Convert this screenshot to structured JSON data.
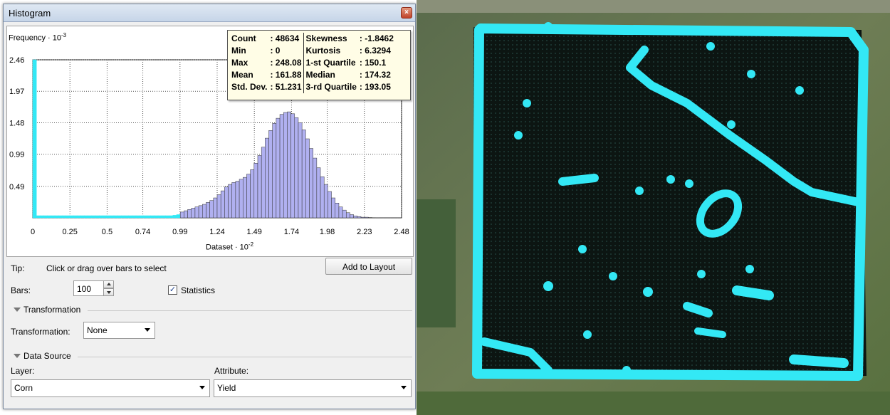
{
  "window": {
    "title": "Histogram",
    "close_icon": "close-icon"
  },
  "stats": {
    "count_label": "Count",
    "count_value": ": 48634",
    "min_label": "Min",
    "min_value": ": 0",
    "max_label": "Max",
    "max_value": ": 248.08",
    "mean_label": "Mean",
    "mean_value": ": 161.88",
    "std_label": "Std. Dev.",
    "std_value": ": 51.231",
    "skew_label": "Skewness",
    "skew_value": ": -1.8462",
    "kurt_label": "Kurtosis",
    "kurt_value": ": 6.3294",
    "q1_label": "1-st Quartile",
    "q1_value": ": 150.1",
    "median_label": "Median",
    "median_value": ": 174.32",
    "q3_label": "3-rd Quartile",
    "q3_value": ": 193.05"
  },
  "chart_data": {
    "type": "bar",
    "ylabel": "Frequency · 10",
    "ylabel_exp": "-3",
    "xlabel": "Dataset · 10",
    "xlabel_exp": "-2",
    "y_ticks": [
      "2.46",
      "1.97",
      "1.48",
      "0.99",
      "0.49"
    ],
    "y_tick_values": [
      2.46,
      1.97,
      1.48,
      0.99,
      0.49
    ],
    "x_ticks": [
      "0",
      "0.25",
      "0.5",
      "0.74",
      "0.99",
      "1.24",
      "1.49",
      "1.74",
      "1.98",
      "2.23",
      "2.48"
    ],
    "x_tick_values": [
      0,
      0.25,
      0.5,
      0.74,
      0.99,
      1.24,
      1.49,
      1.74,
      1.98,
      2.23,
      2.48
    ],
    "xlim": [
      0,
      2.48
    ],
    "ylim": [
      0,
      2.46
    ],
    "bars": 100,
    "values": [
      2.46,
      0.02,
      0.02,
      0.02,
      0.02,
      0.02,
      0.02,
      0.02,
      0.02,
      0.02,
      0.02,
      0.02,
      0.02,
      0.02,
      0.02,
      0.02,
      0.02,
      0.02,
      0.02,
      0.02,
      0.02,
      0.02,
      0.02,
      0.02,
      0.02,
      0.02,
      0.02,
      0.02,
      0.02,
      0.02,
      0.02,
      0.02,
      0.02,
      0.02,
      0.03,
      0.03,
      0.03,
      0.03,
      0.04,
      0.05,
      0.09,
      0.11,
      0.13,
      0.15,
      0.17,
      0.19,
      0.21,
      0.24,
      0.27,
      0.31,
      0.36,
      0.42,
      0.48,
      0.52,
      0.55,
      0.57,
      0.6,
      0.63,
      0.68,
      0.75,
      0.85,
      0.97,
      1.1,
      1.24,
      1.36,
      1.47,
      1.55,
      1.61,
      1.64,
      1.65,
      1.62,
      1.56,
      1.48,
      1.37,
      1.23,
      1.08,
      0.93,
      0.78,
      0.64,
      0.52,
      0.41,
      0.31,
      0.23,
      0.17,
      0.12,
      0.08,
      0.05,
      0.03,
      0.02,
      0.01,
      0.01,
      0.005,
      0.003,
      0.002,
      0.001,
      0.001,
      0.001,
      0.001,
      0.001,
      0.001
    ],
    "selected_bars": 40,
    "bar_color": "#b0b0f0",
    "selected_color": "#33e8f5",
    "grid": true
  },
  "controls": {
    "tip_label": "Tip:",
    "tip_text": "Click or drag over bars to select",
    "add_to_layout": "Add to Layout",
    "bars_label": "Bars:",
    "bars_value": "100",
    "statistics_label": "Statistics",
    "statistics_checked": "✓",
    "transformation_group": "Transformation",
    "transformation_label": "Transformation:",
    "transformation_value": "None",
    "data_source_group": "Data Source",
    "layer_label": "Layer:",
    "layer_value": "Corn",
    "attribute_label": "Attribute:",
    "attribute_value": "Yield"
  },
  "map": {
    "point_color": "#33e8f5",
    "field_color": "#0c1512"
  }
}
